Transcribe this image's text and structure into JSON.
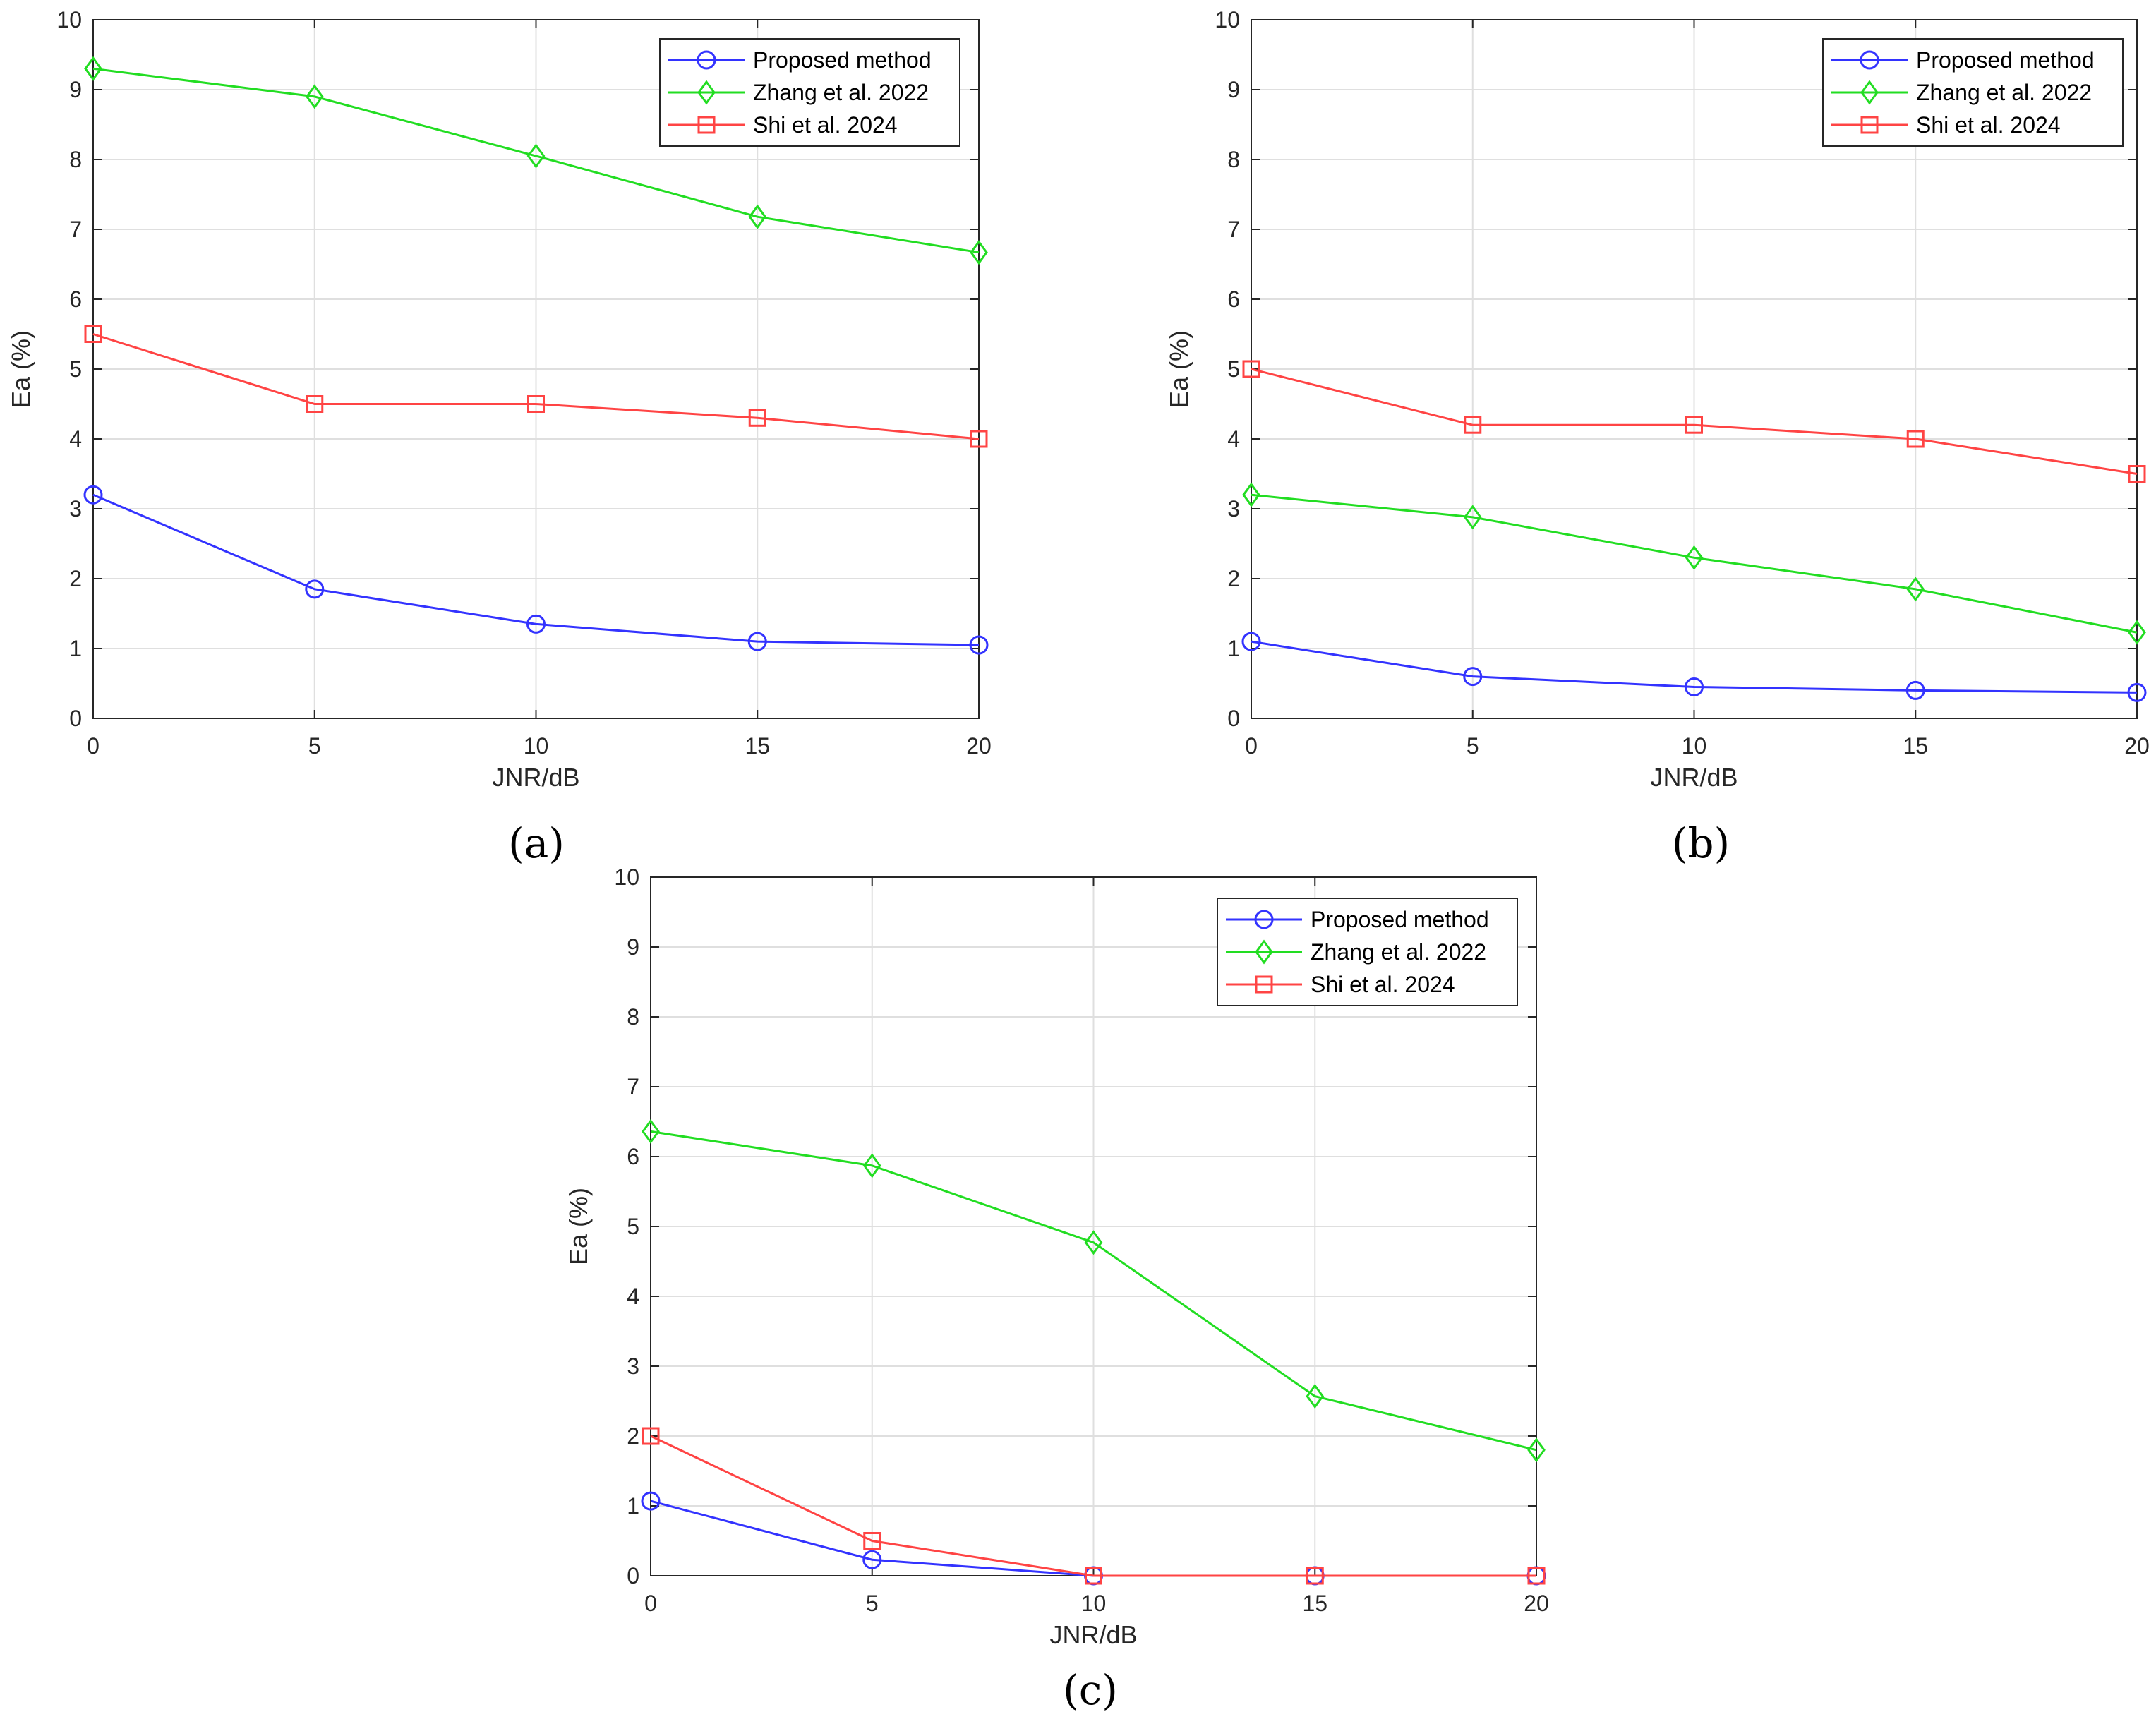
{
  "chart_data": [
    {
      "type": "line",
      "panel_caption": "(a)",
      "xlabel": "JNR/dB",
      "ylabel": "Ea (%)",
      "x": [
        0,
        5,
        10,
        15,
        20
      ],
      "xlim": [
        0,
        20
      ],
      "ylim": [
        0,
        10
      ],
      "xticks": [
        "0",
        "5",
        "10",
        "15",
        "20"
      ],
      "yticks": [
        "0",
        "1",
        "2",
        "3",
        "4",
        "5",
        "6",
        "7",
        "8",
        "9",
        "10"
      ],
      "grid": true,
      "legend_position": "top-right",
      "series": [
        {
          "name": "Proposed method",
          "color": "#3333ff",
          "marker": "circle",
          "values": [
            3.2,
            1.85,
            1.35,
            1.1,
            1.05
          ]
        },
        {
          "name": "Zhang et al. 2022",
          "color": "#22dd22",
          "marker": "diamond",
          "values": [
            9.3,
            8.9,
            8.05,
            7.18,
            6.67
          ]
        },
        {
          "name": "Shi et al. 2024",
          "color": "#ff4444",
          "marker": "square",
          "values": [
            5.5,
            4.5,
            4.5,
            4.3,
            4.0
          ]
        }
      ]
    },
    {
      "type": "line",
      "panel_caption": "(b)",
      "xlabel": "JNR/dB",
      "ylabel": "Ea (%)",
      "x": [
        0,
        5,
        10,
        15,
        20
      ],
      "xlim": [
        0,
        20
      ],
      "ylim": [
        0,
        10
      ],
      "xticks": [
        "0",
        "5",
        "10",
        "15",
        "20"
      ],
      "yticks": [
        "0",
        "1",
        "2",
        "3",
        "4",
        "5",
        "6",
        "7",
        "8",
        "9",
        "10"
      ],
      "grid": true,
      "legend_position": "top-right",
      "series": [
        {
          "name": "Proposed method",
          "color": "#3333ff",
          "marker": "circle",
          "values": [
            1.1,
            0.6,
            0.45,
            0.4,
            0.37
          ]
        },
        {
          "name": "Zhang et al. 2022",
          "color": "#22dd22",
          "marker": "diamond",
          "values": [
            3.2,
            2.88,
            2.3,
            1.85,
            1.23
          ]
        },
        {
          "name": "Shi et al. 2024",
          "color": "#ff4444",
          "marker": "square",
          "values": [
            5.0,
            4.2,
            4.2,
            4.0,
            3.5
          ]
        }
      ]
    },
    {
      "type": "line",
      "panel_caption": "(c)",
      "xlabel": "JNR/dB",
      "ylabel": "Ea (%)",
      "x": [
        0,
        5,
        10,
        15,
        20
      ],
      "xlim": [
        0,
        20
      ],
      "ylim": [
        0,
        10
      ],
      "xticks": [
        "0",
        "5",
        "10",
        "15",
        "20"
      ],
      "yticks": [
        "0",
        "1",
        "2",
        "3",
        "4",
        "5",
        "6",
        "7",
        "8",
        "9",
        "10"
      ],
      "grid": true,
      "legend_position": "top-right",
      "series": [
        {
          "name": "Proposed method",
          "color": "#3333ff",
          "marker": "circle",
          "values": [
            1.07,
            0.23,
            0.0,
            0.0,
            0.0
          ]
        },
        {
          "name": "Zhang et al. 2022",
          "color": "#22dd22",
          "marker": "diamond",
          "values": [
            6.36,
            5.87,
            4.77,
            2.57,
            1.8
          ]
        },
        {
          "name": "Shi et al. 2024",
          "color": "#ff4444",
          "marker": "square",
          "values": [
            2.0,
            0.5,
            0.0,
            0.0,
            0.0
          ]
        }
      ]
    }
  ]
}
